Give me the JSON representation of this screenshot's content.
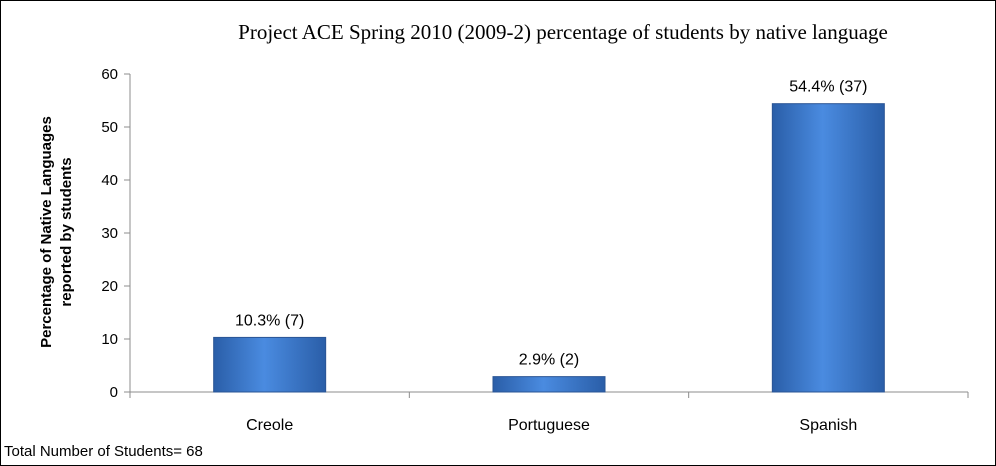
{
  "chart_data": {
    "type": "bar",
    "title": "Project ACE Spring 2010 (2009-2) percentage of students by native language",
    "ylabel_lines": [
      "Percentage of Native Languages",
      "reported by  students"
    ],
    "xlabel": "",
    "categories": [
      "Creole",
      "Portuguese",
      "Spanish"
    ],
    "values": [
      10.3,
      2.9,
      54.4
    ],
    "data_labels": [
      "10.3% (7)",
      "2.9% (2)",
      "54.4% (37)"
    ],
    "ylim": [
      0,
      60
    ],
    "yticks": [
      0,
      10,
      20,
      30,
      40,
      50,
      60
    ],
    "grid": false,
    "legend": "none",
    "bar_color": "#3f7fd0",
    "footnote": "Total Number of Students= 68"
  }
}
